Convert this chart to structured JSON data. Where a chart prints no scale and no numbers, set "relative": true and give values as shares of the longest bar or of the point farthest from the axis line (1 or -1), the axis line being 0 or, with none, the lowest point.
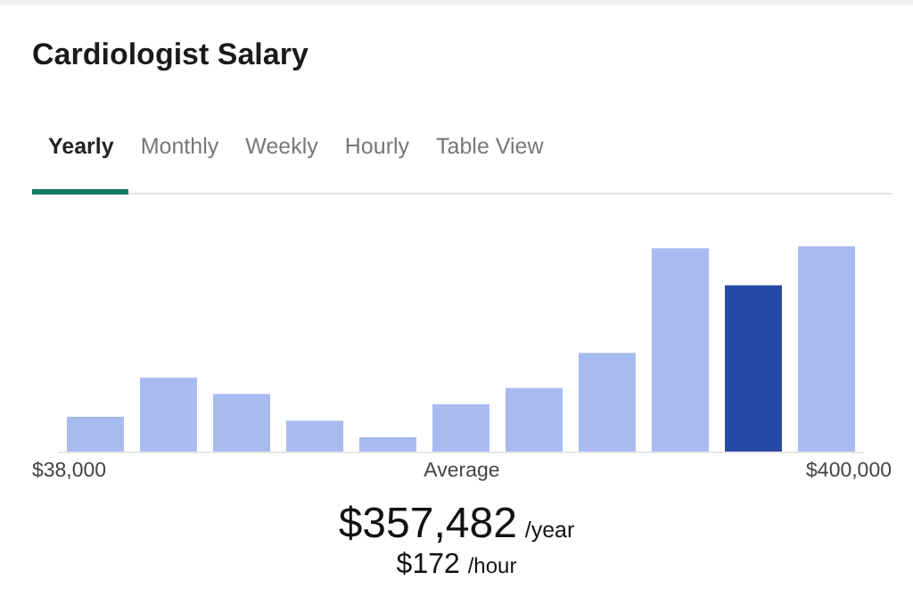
{
  "chart_data": {
    "type": "bar",
    "title": "Cardiologist Salary",
    "relative": true,
    "categories": [
      null,
      null,
      null,
      null,
      null,
      null,
      null,
      null,
      null,
      null,
      null
    ],
    "values": [
      0.17,
      0.36,
      0.28,
      0.15,
      0.07,
      0.23,
      0.31,
      0.48,
      0.99,
      0.81,
      1
    ],
    "colors": [
      "#a8bbf0",
      "#a8bbf0",
      "#a8bbf0",
      "#a8bbf0",
      "#a8bbf0",
      "#a8bbf0",
      "#a8bbf0",
      "#a8bbf0",
      "#a8bbf0",
      "#2549a5",
      "#a8bbf0"
    ],
    "annotations": [
      "Yearly",
      "Monthly",
      "Weekly",
      "Hourly",
      "Table View",
      "$38,000",
      "Average",
      "$400,000",
      "$357,482 /year",
      "$172 /hour"
    ],
    "data_labels": false
  }
}
